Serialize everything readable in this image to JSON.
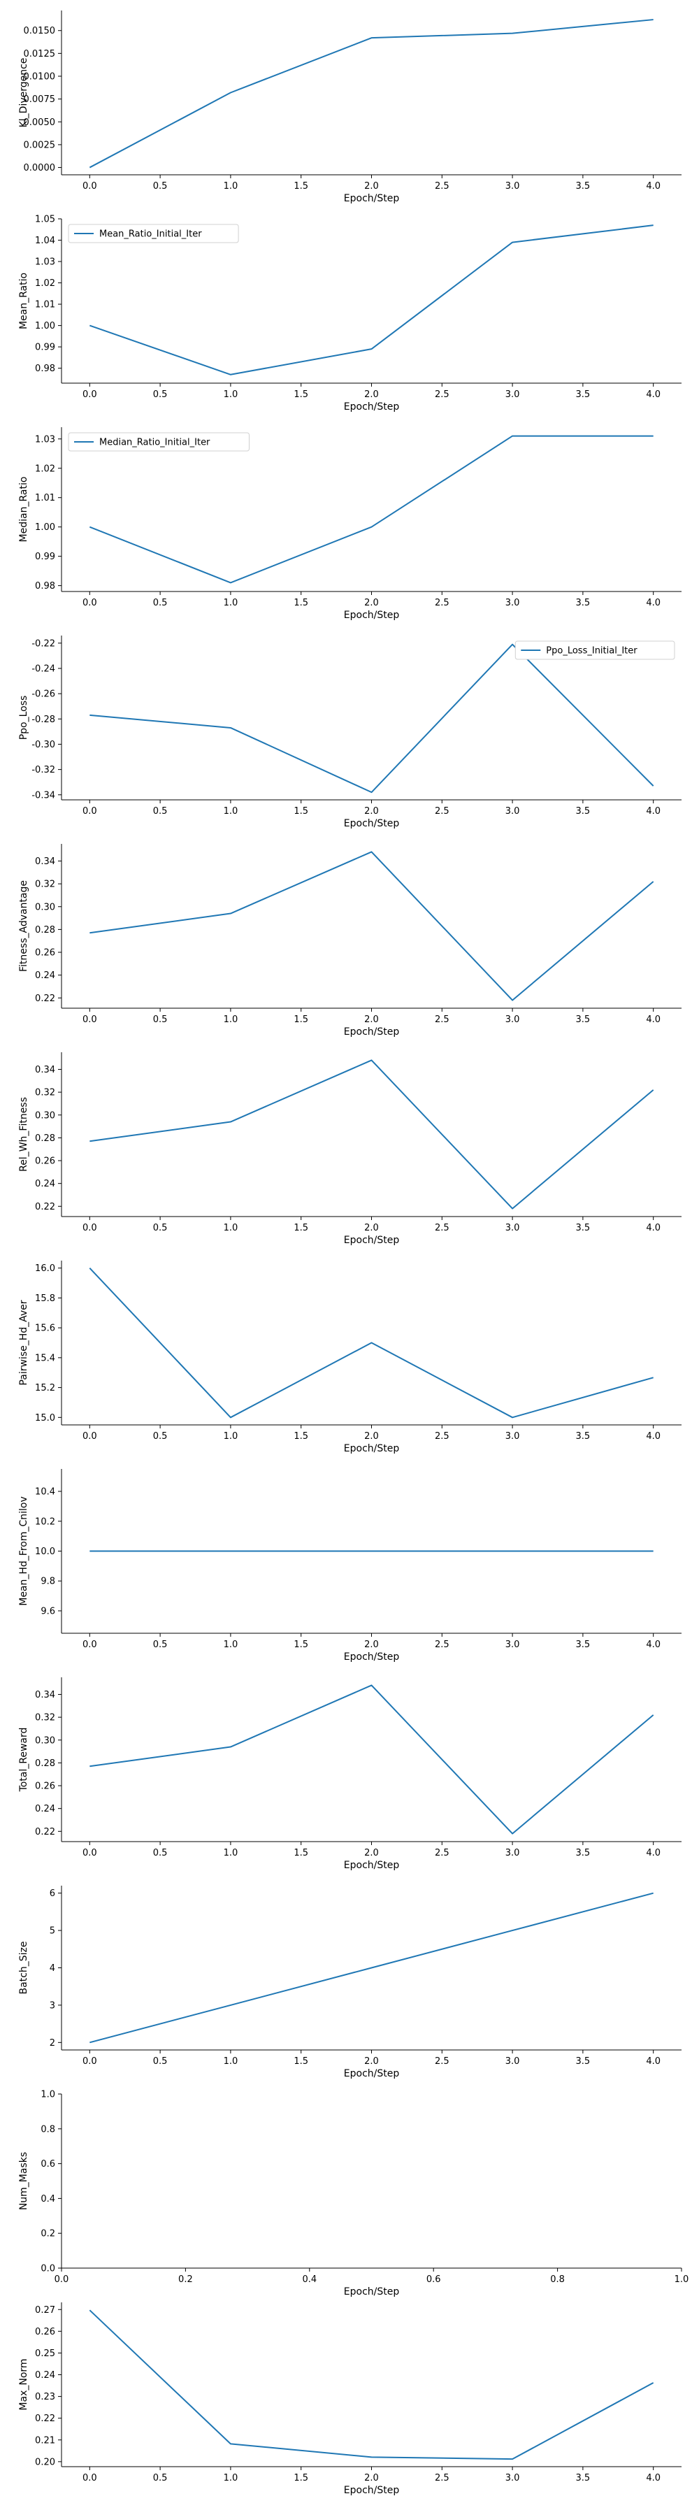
{
  "chart_data": [
    {
      "type": "line",
      "xlabel": "Epoch/Step",
      "ylabel": "Kl_Divergence",
      "x": [
        0,
        1,
        2,
        3,
        4
      ],
      "xlim": [
        -0.2,
        4.2
      ],
      "xticks": [
        "0.0",
        "0.5",
        "1.0",
        "1.5",
        "2.0",
        "2.5",
        "3.0",
        "3.5",
        "4.0"
      ],
      "ylim": [
        -0.0008,
        0.0172
      ],
      "yticks": [
        "0.0000",
        "0.0025",
        "0.0050",
        "0.0075",
        "0.0100",
        "0.0125",
        "0.0150"
      ],
      "series": [
        {
          "name": "",
          "values": [
            0.0,
            0.0082,
            0.0142,
            0.0147,
            0.0162
          ]
        }
      ],
      "legend": null,
      "grid": false
    },
    {
      "type": "line",
      "xlabel": "Epoch/Step",
      "ylabel": "Mean_Ratio",
      "x": [
        0,
        1,
        2,
        3,
        4
      ],
      "xlim": [
        -0.2,
        4.2
      ],
      "xticks": [
        "0.0",
        "0.5",
        "1.0",
        "1.5",
        "2.0",
        "2.5",
        "3.0",
        "3.5",
        "4.0"
      ],
      "ylim": [
        0.973,
        1.05
      ],
      "yticks": [
        "0.98",
        "0.99",
        "1.00",
        "1.01",
        "1.02",
        "1.03",
        "1.04",
        "1.05"
      ],
      "series": [
        {
          "name": "Mean_Ratio_Initial_Iter",
          "values": [
            1.0,
            0.977,
            0.989,
            1.039,
            1.047
          ]
        }
      ],
      "legend": "top-left",
      "grid": false
    },
    {
      "type": "line",
      "xlabel": "Epoch/Step",
      "ylabel": "Median_Ratio",
      "x": [
        0,
        1,
        2,
        3,
        4
      ],
      "xlim": [
        -0.2,
        4.2
      ],
      "xticks": [
        "0.0",
        "0.5",
        "1.0",
        "1.5",
        "2.0",
        "2.5",
        "3.0",
        "3.5",
        "4.0"
      ],
      "ylim": [
        0.978,
        1.034
      ],
      "yticks": [
        "0.98",
        "0.99",
        "1.00",
        "1.01",
        "1.02",
        "1.03"
      ],
      "series": [
        {
          "name": "Median_Ratio_Initial_Iter",
          "values": [
            1.0,
            0.981,
            1.0,
            1.031,
            1.031
          ]
        }
      ],
      "legend": "top-left",
      "grid": false
    },
    {
      "type": "line",
      "xlabel": "Epoch/Step",
      "ylabel": "Ppo_Loss",
      "x": [
        0,
        1,
        2,
        3,
        4
      ],
      "xlim": [
        -0.2,
        4.2
      ],
      "xticks": [
        "0.0",
        "0.5",
        "1.0",
        "1.5",
        "2.0",
        "2.5",
        "3.0",
        "3.5",
        "4.0"
      ],
      "ylim": [
        -0.344,
        -0.214
      ],
      "yticks": [
        "-0.34",
        "-0.32",
        "-0.30",
        "-0.28",
        "-0.26",
        "-0.24",
        "-0.22"
      ],
      "series": [
        {
          "name": "Ppo_Loss_Initial_Iter",
          "values": [
            -0.277,
            -0.287,
            -0.338,
            -0.221,
            -0.333
          ]
        }
      ],
      "legend": "top-right",
      "grid": false
    },
    {
      "type": "line",
      "xlabel": "Epoch/Step",
      "ylabel": "Fitness_Advantage",
      "x": [
        0,
        1,
        2,
        3,
        4
      ],
      "xlim": [
        -0.2,
        4.2
      ],
      "xticks": [
        "0.0",
        "0.5",
        "1.0",
        "1.5",
        "2.0",
        "2.5",
        "3.0",
        "3.5",
        "4.0"
      ],
      "ylim": [
        0.211,
        0.355
      ],
      "yticks": [
        "0.22",
        "0.24",
        "0.26",
        "0.28",
        "0.30",
        "0.32",
        "0.34"
      ],
      "series": [
        {
          "name": "",
          "values": [
            0.277,
            0.294,
            0.348,
            0.218,
            0.322
          ]
        }
      ],
      "legend": null,
      "grid": false
    },
    {
      "type": "line",
      "xlabel": "Epoch/Step",
      "ylabel": "Rel_Wh_Fitness",
      "x": [
        0,
        1,
        2,
        3,
        4
      ],
      "xlim": [
        -0.2,
        4.2
      ],
      "xticks": [
        "0.0",
        "0.5",
        "1.0",
        "1.5",
        "2.0",
        "2.5",
        "3.0",
        "3.5",
        "4.0"
      ],
      "ylim": [
        0.211,
        0.355
      ],
      "yticks": [
        "0.22",
        "0.24",
        "0.26",
        "0.28",
        "0.30",
        "0.32",
        "0.34"
      ],
      "series": [
        {
          "name": "",
          "values": [
            0.277,
            0.294,
            0.348,
            0.218,
            0.322
          ]
        }
      ],
      "legend": null,
      "grid": false
    },
    {
      "type": "line",
      "xlabel": "Epoch/Step",
      "ylabel": "Pairwise_Hd_Aver",
      "x": [
        0,
        1,
        2,
        3,
        4
      ],
      "xlim": [
        -0.2,
        4.2
      ],
      "xticks": [
        "0.0",
        "0.5",
        "1.0",
        "1.5",
        "2.0",
        "2.5",
        "3.0",
        "3.5",
        "4.0"
      ],
      "ylim": [
        14.95,
        16.05
      ],
      "yticks": [
        "15.0",
        "15.2",
        "15.4",
        "15.6",
        "15.8",
        "16.0"
      ],
      "series": [
        {
          "name": "",
          "values": [
            16.0,
            15.0,
            15.5,
            15.0,
            15.267
          ]
        }
      ],
      "legend": null,
      "grid": false
    },
    {
      "type": "line",
      "xlabel": "Epoch/Step",
      "ylabel": "Mean_Hd_From_Cnilov",
      "x": [
        0,
        1,
        2,
        3,
        4
      ],
      "xlim": [
        -0.2,
        4.2
      ],
      "xticks": [
        "0.0",
        "0.5",
        "1.0",
        "1.5",
        "2.0",
        "2.5",
        "3.0",
        "3.5",
        "4.0"
      ],
      "ylim": [
        9.45,
        10.55
      ],
      "yticks": [
        "9.6",
        "9.8",
        "10.0",
        "10.2",
        "10.4"
      ],
      "series": [
        {
          "name": "",
          "values": [
            10.0,
            10.0,
            10.0,
            10.0,
            10.0
          ]
        }
      ],
      "legend": null,
      "grid": false
    },
    {
      "type": "line",
      "xlabel": "Epoch/Step",
      "ylabel": "Total_Reward",
      "x": [
        0,
        1,
        2,
        3,
        4
      ],
      "xlim": [
        -0.2,
        4.2
      ],
      "xticks": [
        "0.0",
        "0.5",
        "1.0",
        "1.5",
        "2.0",
        "2.5",
        "3.0",
        "3.5",
        "4.0"
      ],
      "ylim": [
        0.211,
        0.355
      ],
      "yticks": [
        "0.22",
        "0.24",
        "0.26",
        "0.28",
        "0.30",
        "0.32",
        "0.34"
      ],
      "series": [
        {
          "name": "",
          "values": [
            0.277,
            0.294,
            0.348,
            0.218,
            0.322
          ]
        }
      ],
      "legend": null,
      "grid": false
    },
    {
      "type": "line",
      "xlabel": "Epoch/Step",
      "ylabel": "Batch_Size",
      "x": [
        0,
        1,
        2,
        3,
        4
      ],
      "xlim": [
        -0.2,
        4.2
      ],
      "xticks": [
        "0.0",
        "0.5",
        "1.0",
        "1.5",
        "2.0",
        "2.5",
        "3.0",
        "3.5",
        "4.0"
      ],
      "ylim": [
        1.8,
        6.2
      ],
      "yticks": [
        "2",
        "3",
        "4",
        "5",
        "6"
      ],
      "series": [
        {
          "name": "",
          "values": [
            2,
            3,
            4,
            5,
            6
          ]
        }
      ],
      "legend": null,
      "grid": false
    },
    {
      "type": "line",
      "xlabel": "Epoch/Step",
      "ylabel": "Num_Masks",
      "x": [],
      "xlim": [
        0.0,
        1.0
      ],
      "xticks": [
        "0.0",
        "0.2",
        "0.4",
        "0.6",
        "0.8",
        "1.0"
      ],
      "ylim": [
        0.0,
        1.0
      ],
      "yticks": [
        "0.0",
        "0.2",
        "0.4",
        "0.6",
        "0.8",
        "1.0"
      ],
      "series": [],
      "legend": null,
      "grid": false
    },
    {
      "type": "line",
      "xlabel": "Epoch/Step",
      "ylabel": "Max_Norm",
      "x": [
        0,
        1,
        2,
        3,
        4
      ],
      "xlim": [
        -0.2,
        4.2
      ],
      "xticks": [
        "0.0",
        "0.5",
        "1.0",
        "1.5",
        "2.0",
        "2.5",
        "3.0",
        "3.5",
        "4.0"
      ],
      "ylim": [
        0.1977,
        0.2733
      ],
      "yticks": [
        "0.20",
        "0.21",
        "0.22",
        "0.23",
        "0.24",
        "0.25",
        "0.26",
        "0.27"
      ],
      "series": [
        {
          "name": "",
          "values": [
            0.2697,
            0.2082,
            0.2021,
            0.2012,
            0.2363
          ]
        }
      ],
      "legend": null,
      "grid": false
    }
  ],
  "colors": {
    "line": "#1f77b4",
    "axis": "#000000",
    "legend_border": "#d0d0d0"
  }
}
